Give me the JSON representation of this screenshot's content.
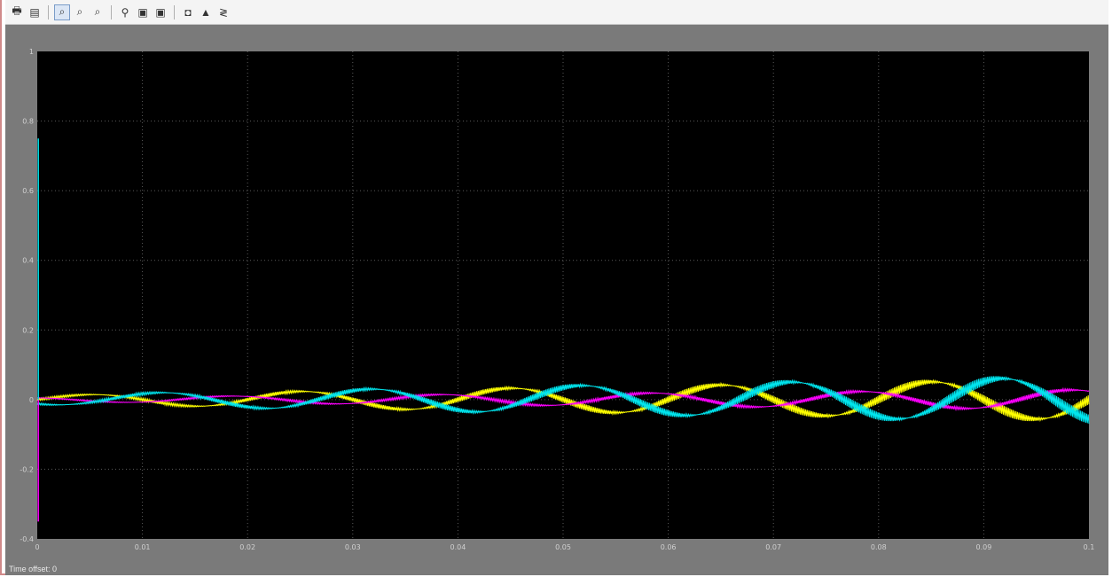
{
  "toolbar": {
    "items": [
      {
        "name": "print-icon",
        "glyph": "🖶",
        "active": false
      },
      {
        "name": "parameters-icon",
        "glyph": "▤",
        "active": false
      },
      {
        "name": "zoom-icon",
        "glyph": "⌕",
        "active": true
      },
      {
        "name": "zoom-x-icon",
        "glyph": "⌕",
        "active": false
      },
      {
        "name": "zoom-y-icon",
        "glyph": "⌕",
        "active": false
      },
      {
        "name": "autoscale-icon",
        "glyph": "⚲",
        "active": false
      },
      {
        "name": "save-axes-icon",
        "glyph": "▣",
        "active": false
      },
      {
        "name": "restore-axes-icon",
        "glyph": "▣",
        "active": false
      },
      {
        "name": "floating-scope-icon",
        "glyph": "◘",
        "active": false
      },
      {
        "name": "lock-axes-icon",
        "glyph": "▲",
        "active": false
      },
      {
        "name": "signal-selection-icon",
        "glyph": "≷",
        "active": false
      }
    ]
  },
  "status": {
    "time_offset": "Time offset:  0"
  },
  "chart_data": {
    "type": "line",
    "background": "#000000",
    "grid": true,
    "xlim": [
      0,
      0.1
    ],
    "ylim": [
      -0.4,
      1
    ],
    "x_ticks": [
      "0",
      "0.01",
      "0.02",
      "0.03",
      "0.04",
      "0.05",
      "0.06",
      "0.07",
      "0.08",
      "0.09",
      "0.1"
    ],
    "y_ticks": [
      "-0.4",
      "-0.2",
      "0",
      "0.2",
      "0.4",
      "0.6",
      "0.8",
      "1"
    ],
    "frequency_hz": 50,
    "series": [
      {
        "color": "#ffff00",
        "envelope_start": 0.012,
        "envelope_end": 0.058,
        "phase_deg": 0,
        "ripple": true
      },
      {
        "color": "#ff00ff",
        "envelope_start": 0.006,
        "envelope_end": 0.028,
        "phase_deg": 120,
        "ripple": true
      },
      {
        "color": "#00e5ee",
        "envelope_start": 0.014,
        "envelope_end": 0.065,
        "phase_deg": 240,
        "ripple": true
      }
    ]
  }
}
